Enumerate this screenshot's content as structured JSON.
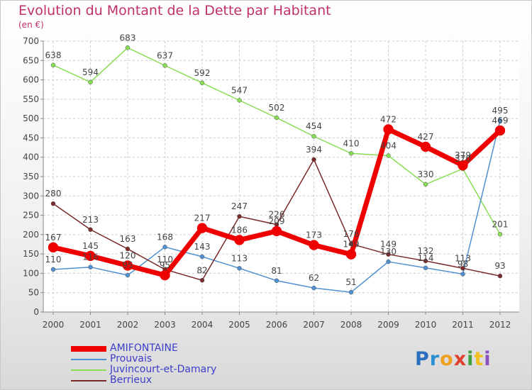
{
  "title": "Evolution du Montant de la Dette par Habitant",
  "subtitle": "(en €)",
  "logo": {
    "letters": [
      "P",
      "r",
      "o",
      "x",
      "i",
      "t",
      "i"
    ],
    "colors": [
      "#2a6fc0",
      "#2a8ed0",
      "#f0a020",
      "#e04030",
      "#40a040",
      "#f0c020",
      "#8a50c0"
    ]
  },
  "chart_data": {
    "type": "line",
    "ylim": [
      0,
      700
    ],
    "yticks": [
      0,
      50,
      100,
      150,
      200,
      250,
      300,
      350,
      400,
      450,
      500,
      550,
      600,
      650,
      700
    ],
    "categories": [
      "2000",
      "2001",
      "2002",
      "2003",
      "2004",
      "2005",
      "2006",
      "2007",
      "2008",
      "2009",
      "2010",
      "2011",
      "2012"
    ],
    "grid": true,
    "legend_position": "bottom-left",
    "series": [
      {
        "name": "AMIFONTAINE",
        "color": "#ee0000",
        "width": 7,
        "values": [
          167,
          145,
          120,
          95,
          217,
          186,
          209,
          173,
          149,
          472,
          427,
          379,
          469
        ]
      },
      {
        "name": "Prouvais",
        "color": "#5090d0",
        "width": 1.5,
        "values": [
          110,
          116,
          95,
          168,
          143,
          113,
          81,
          62,
          51,
          130,
          114,
          98,
          495
        ]
      },
      {
        "name": "Juvincourt-et-Damary",
        "color": "#88dd55",
        "width": 1.5,
        "values": [
          638,
          594,
          683,
          637,
          592,
          547,
          502,
          454,
          410,
          404,
          330,
          370,
          201
        ]
      },
      {
        "name": "Berrieux",
        "color": "#7a2a2a",
        "width": 1.5,
        "values": [
          280,
          213,
          163,
          110,
          82,
          247,
          226,
          394,
          176,
          149,
          132,
          113,
          93
        ]
      }
    ]
  },
  "labels": [
    {
      "series": 2,
      "values": [
        "638",
        "594",
        "683",
        "637",
        "592",
        "547",
        "502",
        "454",
        "410",
        "404",
        "330",
        "370",
        "201"
      ]
    },
    {
      "series": 0,
      "values": [
        "167",
        "145",
        "120",
        "95",
        "217",
        "186",
        "209",
        "173",
        "149",
        "472",
        "427",
        "379",
        "469"
      ]
    },
    {
      "series": 1,
      "values": [
        "110",
        "116",
        "95",
        "168",
        "143",
        "113",
        "81",
        "62",
        "51",
        "130",
        "114",
        "98",
        "495"
      ]
    },
    {
      "series": 3,
      "values": [
        "280",
        "213",
        "163",
        "110",
        "82",
        "247",
        "226",
        "394",
        "176",
        "149",
        "132",
        "113",
        "93"
      ]
    }
  ]
}
